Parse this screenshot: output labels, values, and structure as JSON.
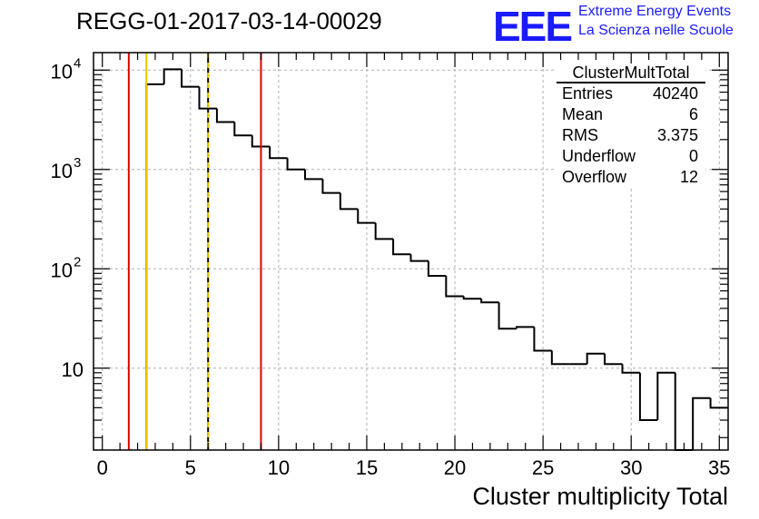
{
  "title": "REGG-01-2017-03-14-00029",
  "logo": {
    "mark": "EEE",
    "line1": "Extreme Energy Events",
    "line2": "La Scienza nelle Scuole"
  },
  "stats": {
    "name": "ClusterMultTotal",
    "rows": [
      {
        "label": "Entries",
        "value": "40240"
      },
      {
        "label": "Mean",
        "value": "6"
      },
      {
        "label": "RMS",
        "value": "3.375"
      },
      {
        "label": "Underflow",
        "value": "0"
      },
      {
        "label": "Overflow",
        "value": "12"
      }
    ]
  },
  "chart_data": {
    "type": "bar",
    "title": "REGG-01-2017-03-14-00029",
    "xlabel": "Cluster multiplicity Total",
    "ylabel": "",
    "xlim": [
      -0.5,
      35.5
    ],
    "ylim": [
      1.5,
      15000
    ],
    "log_y": true,
    "grid": true,
    "x_ticks": [
      0,
      5,
      10,
      15,
      20,
      25,
      30,
      35
    ],
    "y_ticks": [
      {
        "value": 10,
        "label": "10"
      },
      {
        "value": 100,
        "label": "10",
        "exp": "2"
      },
      {
        "value": 1000,
        "label": "10",
        "exp": "3"
      },
      {
        "value": 10000,
        "label": "10",
        "exp": "4"
      }
    ],
    "bin_width": 1,
    "bin_low_edges": [
      2.5,
      3.5,
      4.5,
      5.5,
      6.5,
      7.5,
      8.5,
      9.5,
      10.5,
      11.5,
      12.5,
      13.5,
      14.5,
      15.5,
      16.5,
      17.5,
      18.5,
      19.5,
      20.5,
      21.5,
      22.5,
      23.5,
      24.5,
      25.5,
      26.5,
      27.5,
      28.5,
      29.5,
      30.5,
      31.5,
      32.5,
      33.5,
      34.5
    ],
    "values": [
      7200,
      10200,
      6800,
      4100,
      3000,
      2200,
      1700,
      1300,
      1000,
      800,
      580,
      400,
      290,
      200,
      140,
      120,
      85,
      53,
      50,
      46,
      25,
      26,
      15,
      11,
      11,
      14,
      11,
      9,
      3,
      9,
      1,
      5,
      4
    ],
    "vertical_lines": [
      {
        "x": 1.5,
        "color": "#e00000",
        "style": "solid"
      },
      {
        "x": 2.5,
        "color": "#f2c200",
        "style": "solid"
      },
      {
        "x": 6.0,
        "color": "#f2c200",
        "style": "dashed-yellow-black"
      },
      {
        "x": 9.0,
        "color": "#e00000",
        "style": "solid"
      }
    ],
    "colors": {
      "line": "#000000",
      "grid": "#b0b0b0"
    }
  }
}
